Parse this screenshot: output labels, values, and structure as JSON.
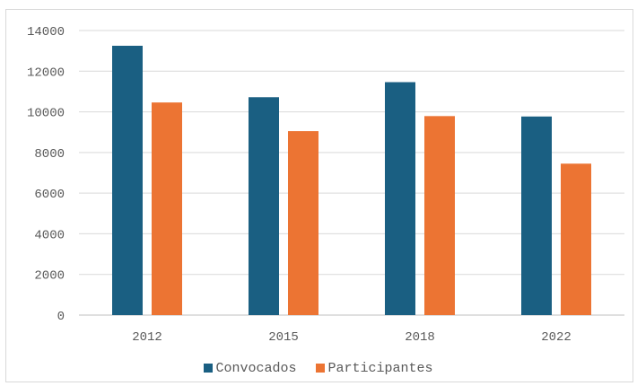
{
  "chart_data": {
    "type": "bar",
    "title": "",
    "xlabel": "",
    "ylabel": "",
    "categories": [
      "2012",
      "2015",
      "2018",
      "2022"
    ],
    "series": [
      {
        "name": "Convocados",
        "color": "#1a5f82",
        "values": [
          13250,
          10720,
          11460,
          9770
        ]
      },
      {
        "name": "Participantes",
        "color": "#ec7433",
        "values": [
          10460,
          9050,
          9790,
          7450
        ]
      }
    ],
    "ylim": [
      0,
      14000
    ],
    "yticks": [
      "0",
      "2000",
      "4000",
      "6000",
      "8000",
      "10000",
      "12000",
      "14000"
    ],
    "grid": true,
    "legend_position": "bottom"
  }
}
